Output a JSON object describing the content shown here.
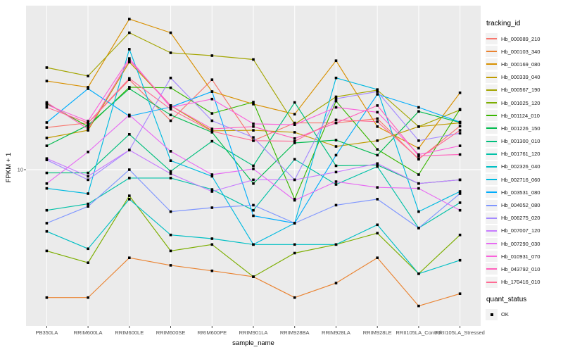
{
  "y_axis": {
    "title": "FPKM + 1",
    "tick_label": "10"
  },
  "x_axis": {
    "title": "sample_name"
  },
  "legend": {
    "tracking_title": "tracking_id",
    "quant_title": "quant_status",
    "quant_item_label": "OK"
  },
  "style": {
    "panel_bg": "#EBEBEB",
    "grid_color": "#FFFFFF",
    "point_color": "#000000",
    "tick_color": "#333333",
    "key_bg": "#F2F2F2"
  },
  "chart_data": {
    "type": "line",
    "title": "",
    "xlabel": "sample_name",
    "ylabel": "FPKM + 1",
    "y_scale": "log10",
    "y_ticks": [
      10
    ],
    "ylim": [
      1.4,
      79
    ],
    "grid": "on",
    "legend_position": "right",
    "point_shape": "small-black-square",
    "x_categories": [
      "PB350LA",
      "RRIM600LA",
      "RRIM600LE",
      "RRIM600SE",
      "RRIM600PE",
      "RRIM901LA",
      "RRIM928BA",
      "RRIM928LA",
      "RRIM928LE",
      "RRII105LA_Control",
      "RRII105LA_Stressed"
    ],
    "series": [
      {
        "name": "Hb_000089_210",
        "color": "#F8766D",
        "values": [
          17.0,
          18.0,
          31.0,
          18.5,
          31.0,
          14.4,
          18.0,
          18.0,
          19.0,
          11.4,
          17.3
        ]
      },
      {
        "name": "Hb_000103_340",
        "color": "#EA8331",
        "values": [
          2.0,
          2.0,
          3.3,
          3.0,
          2.8,
          2.6,
          2.0,
          2.4,
          3.3,
          1.8,
          2.1
        ]
      },
      {
        "name": "Hb_000169_080",
        "color": "#D89000",
        "values": [
          30.5,
          28.2,
          66.5,
          56.0,
          26.7,
          22.8,
          20.1,
          39.4,
          17.2,
          13.1,
          26.3
        ]
      },
      {
        "name": "Hb_000339_040",
        "color": "#C09B00",
        "values": [
          14.9,
          16.4,
          38.7,
          22.4,
          16.3,
          16.4,
          16.0,
          13.4,
          14.4,
          17.2,
          18.0
        ]
      },
      {
        "name": "Hb_000567_190",
        "color": "#A3A500",
        "values": [
          36.1,
          32.5,
          56.0,
          43.5,
          42.0,
          40.0,
          17.7,
          25.0,
          27.2,
          17.2,
          21.2
        ]
      },
      {
        "name": "Hb_001025_120",
        "color": "#7CAE00",
        "values": [
          3.6,
          3.1,
          7.2,
          3.6,
          3.9,
          2.6,
          3.5,
          3.9,
          4.5,
          2.7,
          4.4
        ]
      },
      {
        "name": "Hb_001124_010",
        "color": "#39B600",
        "values": [
          23.0,
          17.2,
          28.2,
          28.0,
          20.3,
          23.4,
          6.9,
          23.7,
          12.9,
          9.4,
          21.4
        ]
      },
      {
        "name": "Hb_001226_150",
        "color": "#00BB4E",
        "values": [
          13.5,
          17.5,
          27.7,
          19.9,
          16.0,
          8.4,
          14.0,
          14.5,
          12.0,
          20.8,
          18.1
        ]
      },
      {
        "name": "Hb_001300_010",
        "color": "#00BF7D",
        "values": [
          9.6,
          9.6,
          15.6,
          9.8,
          14.3,
          10.5,
          23.3,
          10.5,
          10.6,
          8.4,
          8.8
        ]
      },
      {
        "name": "Hb_001761_120",
        "color": "#00C1A7",
        "values": [
          6.0,
          6.5,
          9.0,
          9.0,
          7.8,
          6.0,
          11.4,
          8.3,
          10.4,
          4.8,
          6.6
        ]
      },
      {
        "name": "Hb_002326_040",
        "color": "#00BFC4",
        "values": [
          4.6,
          3.7,
          6.9,
          4.4,
          4.2,
          3.9,
          3.9,
          3.9,
          5.0,
          2.7,
          3.2
        ]
      },
      {
        "name": "Hb_002716_060",
        "color": "#00BAE0",
        "values": [
          7.9,
          7.4,
          45.5,
          11.2,
          9.2,
          3.9,
          5.1,
          31.7,
          27.4,
          5.9,
          7.6
        ]
      },
      {
        "name": "Hb_003531_080",
        "color": "#00ACFC",
        "values": [
          18.1,
          27.7,
          19.6,
          22.0,
          26.7,
          5.6,
          5.1,
          12.0,
          25.8,
          21.9,
          18.2
        ]
      },
      {
        "name": "Hb_004052_080",
        "color": "#7F96FF",
        "values": [
          5.1,
          6.3,
          10.0,
          5.9,
          6.2,
          6.4,
          5.1,
          6.4,
          6.9,
          4.8,
          7.4
        ]
      },
      {
        "name": "Hb_006275_020",
        "color": "#A58AFF",
        "values": [
          11.3,
          8.8,
          12.8,
          31.7,
          18.5,
          15.0,
          8.8,
          24.4,
          26.7,
          14.4,
          15.8
        ]
      },
      {
        "name": "Hb_007007_120",
        "color": "#C77CFF",
        "values": [
          11.5,
          9.2,
          12.8,
          9.5,
          7.6,
          8.8,
          8.8,
          9.7,
          10.8,
          8.4,
          8.8
        ]
      },
      {
        "name": "Hb_007290_030",
        "color": "#E76BF3",
        "values": [
          8.4,
          12.5,
          19.9,
          12.6,
          9.4,
          10.1,
          6.8,
          8.6,
          8.0,
          7.9,
          6.0
        ]
      },
      {
        "name": "Hb_010931_070",
        "color": "#FA62DB",
        "values": [
          22.6,
          18.4,
          40.5,
          21.9,
          24.3,
          17.8,
          17.6,
          21.9,
          20.6,
          12.1,
          13.5
        ]
      },
      {
        "name": "Hb_043792_010",
        "color": "#FF62BC",
        "values": [
          23.3,
          16.7,
          39.6,
          22.4,
          16.7,
          17.2,
          14.8,
          18.0,
          22.4,
          11.9,
          12.1
        ]
      },
      {
        "name": "Hb_170416_010",
        "color": "#FF6B94",
        "values": [
          21.9,
          18.0,
          31.5,
          21.4,
          16.2,
          14.4,
          14.3,
          18.7,
          18.3,
          11.5,
          16.4
        ]
      }
    ]
  }
}
